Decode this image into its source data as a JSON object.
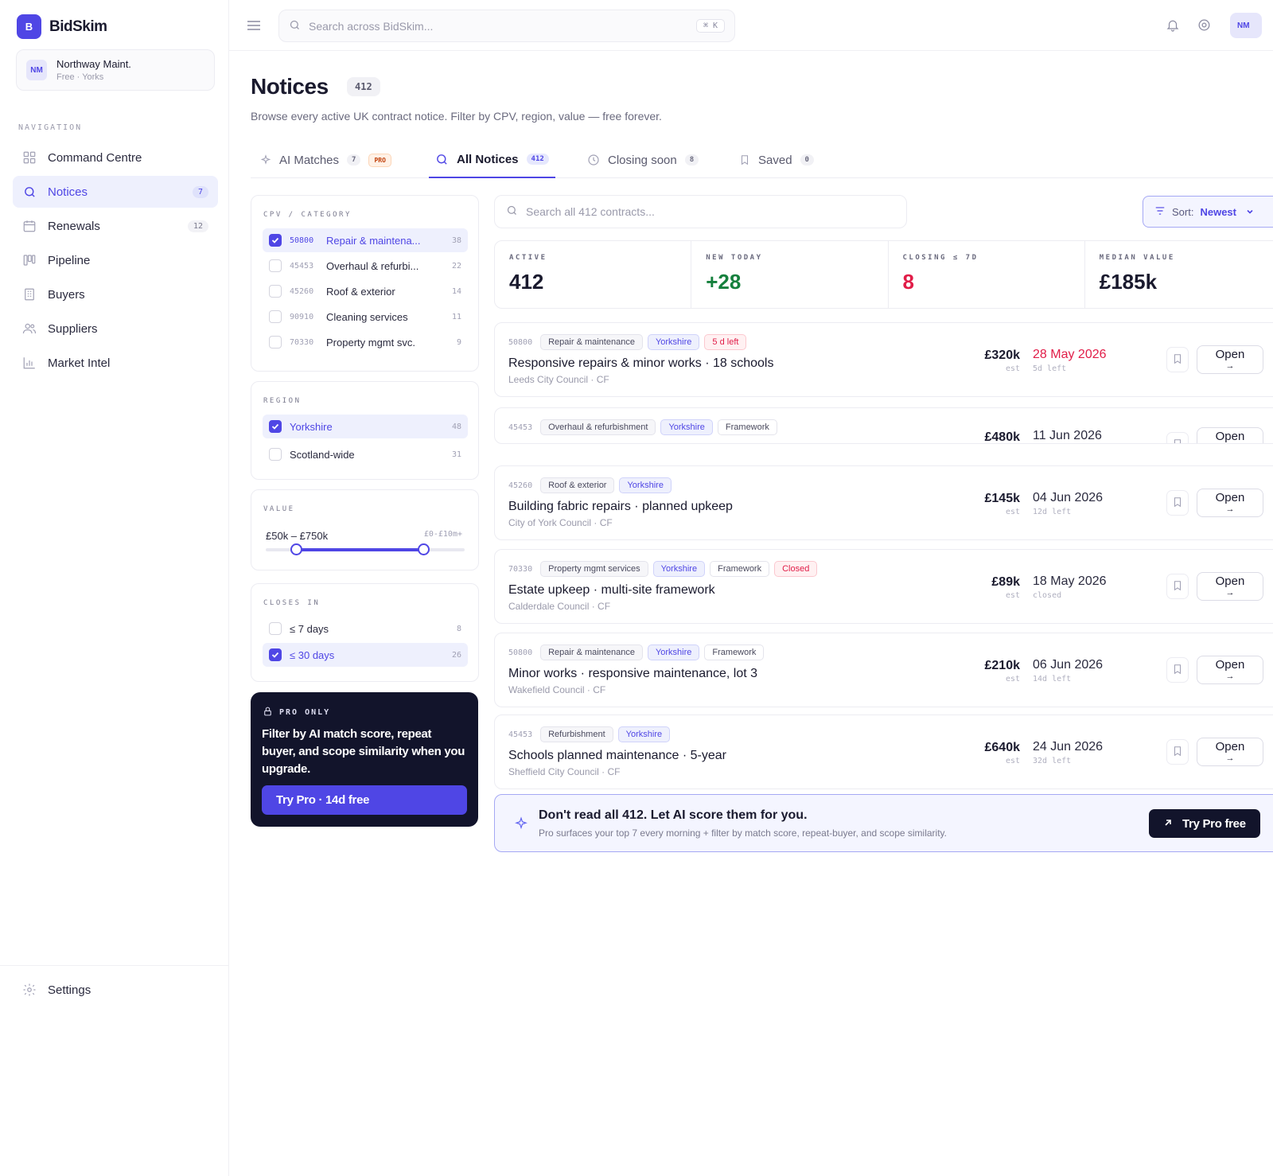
{
  "brand": {
    "logo_letter": "B",
    "name": "BidSkim"
  },
  "org": {
    "initials": "NM",
    "name": "Northway Maint.",
    "plan": "Free · Yorks"
  },
  "nav": {
    "section_label": "NAVIGATION",
    "items": [
      {
        "label": "Command Centre",
        "icon": "grid-icon",
        "count": ""
      },
      {
        "label": "Notices",
        "icon": "search-icon",
        "count": "7",
        "active": true
      },
      {
        "label": "Renewals",
        "icon": "calendar-icon",
        "count": "12"
      },
      {
        "label": "Pipeline",
        "icon": "kanban-icon",
        "count": ""
      },
      {
        "label": "Buyers",
        "icon": "building-icon",
        "count": ""
      },
      {
        "label": "Suppliers",
        "icon": "users-icon",
        "count": ""
      },
      {
        "label": "Market Intel",
        "icon": "bar-chart-icon",
        "count": ""
      }
    ],
    "settings_label": "Settings"
  },
  "topbar": {
    "search_placeholder": "Search across BidSkim...",
    "shortcut": "⌘ K",
    "avatar": "NM"
  },
  "header": {
    "title": "Notices",
    "count": "412",
    "subtitle": "Browse every active UK contract notice. Filter by CPV, region, value — free forever."
  },
  "tabs": [
    {
      "label": "AI Matches",
      "count": "7",
      "badge": "PRO",
      "icon": "sparkle-icon"
    },
    {
      "label": "All Notices",
      "count": "412",
      "icon": "search-icon",
      "active": true
    },
    {
      "label": "Closing soon",
      "count": "8",
      "icon": "clock-icon"
    },
    {
      "label": "Saved",
      "count": "0",
      "icon": "bookmark-icon"
    }
  ],
  "filters": {
    "cpv": {
      "title": "CPV / CATEGORY",
      "items": [
        {
          "code": "50800",
          "label": "Repair & maintena...",
          "count": "38",
          "checked": true
        },
        {
          "code": "45453",
          "label": "Overhaul & refurbi...",
          "count": "22",
          "checked": false
        },
        {
          "code": "45260",
          "label": "Roof & exterior",
          "count": "14",
          "checked": false
        },
        {
          "code": "90910",
          "label": "Cleaning services",
          "count": "11",
          "checked": false
        },
        {
          "code": "70330",
          "label": "Property mgmt svc.",
          "count": "9",
          "checked": false
        }
      ]
    },
    "region": {
      "title": "REGION",
      "items": [
        {
          "label": "Yorkshire",
          "count": "48",
          "checked": true
        },
        {
          "label": "Scotland-wide",
          "count": "31",
          "checked": false
        }
      ]
    },
    "value": {
      "title": "VALUE",
      "range_label": "£50k – £750k",
      "scale_hint": "£0-£10m+",
      "low_fraction": 0.15,
      "high_fraction": 0.79
    },
    "closes": {
      "title": "CLOSES IN",
      "items": [
        {
          "label": "≤ 7 days",
          "count": "8",
          "checked": false
        },
        {
          "label": "≤ 30 days",
          "count": "26",
          "checked": true
        }
      ]
    },
    "pro_card": {
      "label": "PRO ONLY",
      "text": "Filter by AI match score, repeat buyer, and scope similarity when you upgrade.",
      "button": "Try Pro · 14d free"
    }
  },
  "list": {
    "search_placeholder": "Search all 412 contracts...",
    "sort_label": "Sort:",
    "sort_value": "Newest"
  },
  "stats": [
    {
      "label": "ACTIVE",
      "value": "412",
      "color": "#1a1a2e"
    },
    {
      "label": "NEW TODAY",
      "value": "+28",
      "color": "#15803d"
    },
    {
      "label": "CLOSING ≤ 7D",
      "value": "8",
      "color": "#e11d48"
    },
    {
      "label": "MEDIAN VALUE",
      "value": "£185k",
      "color": "#1a1a2e"
    }
  ],
  "notices": [
    {
      "code": "50800",
      "tags": [
        {
          "text": "Repair & maintenance",
          "kind": "category"
        },
        {
          "text": "Yorkshire",
          "kind": "region"
        },
        {
          "text": "5 d left",
          "kind": "alert"
        }
      ],
      "title": "Responsive repairs & minor works · 18 schools",
      "buyer": "Leeds City Council · CF",
      "value": "£320k",
      "est": "est",
      "date": "28 May 2026",
      "date_urgent": true,
      "left": "5d left",
      "open": "Open"
    },
    {
      "code": "45453",
      "tags": [
        {
          "text": "Overhaul & refurbishment",
          "kind": "category"
        },
        {
          "text": "Yorkshire",
          "kind": "region"
        },
        {
          "text": "Framework",
          "kind": "plain"
        }
      ],
      "title": "",
      "buyer": "",
      "value": "£480k",
      "est": "",
      "date": "11 Jun 2026",
      "date_urgent": false,
      "left": "",
      "open": "Open"
    },
    {
      "code": "45260",
      "tags": [
        {
          "text": "Roof & exterior",
          "kind": "category"
        },
        {
          "text": "Yorkshire",
          "kind": "region"
        }
      ],
      "title": "Building fabric repairs · planned upkeep",
      "buyer": "City of York Council · CF",
      "value": "£145k",
      "est": "est",
      "date": "04 Jun 2026",
      "date_urgent": false,
      "left": "12d left",
      "open": "Open"
    },
    {
      "code": "70330",
      "tags": [
        {
          "text": "Property mgmt services",
          "kind": "category"
        },
        {
          "text": "Yorkshire",
          "kind": "region"
        },
        {
          "text": "Framework",
          "kind": "plain"
        },
        {
          "text": "Closed",
          "kind": "alert"
        }
      ],
      "title": "Estate upkeep · multi-site framework",
      "buyer": "Calderdale Council · CF",
      "value": "£89k",
      "est": "est",
      "date": "18 May 2026",
      "date_urgent": false,
      "left": "closed",
      "open": "Open"
    },
    {
      "code": "50800",
      "tags": [
        {
          "text": "Repair & maintenance",
          "kind": "category"
        },
        {
          "text": "Yorkshire",
          "kind": "region"
        },
        {
          "text": "Framework",
          "kind": "plain"
        }
      ],
      "title": "Minor works · responsive maintenance, lot 3",
      "buyer": "Wakefield Council · CF",
      "value": "£210k",
      "est": "est",
      "date": "06 Jun 2026",
      "date_urgent": false,
      "left": "14d left",
      "open": "Open"
    },
    {
      "code": "45453",
      "tags": [
        {
          "text": "Refurbishment",
          "kind": "category"
        },
        {
          "text": "Yorkshire",
          "kind": "region"
        }
      ],
      "title": "Schools planned maintenance · 5-year",
      "buyer": "Sheffield City Council · CF",
      "value": "£640k",
      "est": "est",
      "date": "24 Jun 2026",
      "date_urgent": false,
      "left": "32d left",
      "open": "Open"
    }
  ],
  "upsell": {
    "title": "Don't read all 412. Let AI score them for you.",
    "subtitle": "Pro surfaces your top 7 every morning + filter by match score, repeat-buyer, and scope similarity.",
    "button": "Try Pro free"
  }
}
